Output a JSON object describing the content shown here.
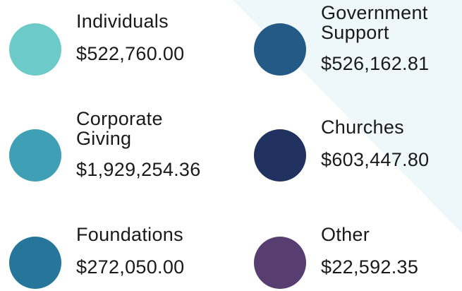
{
  "items": [
    {
      "label": [
        "Individuals"
      ],
      "amount": "$522,760.00",
      "color": "#6ccbc8"
    },
    {
      "label": [
        "Corporate",
        "Giving"
      ],
      "amount": "$1,929,254.36",
      "color": "#3f9fb4"
    },
    {
      "label": [
        "Foundations"
      ],
      "amount": "$272,050.00",
      "color": "#26769b"
    },
    {
      "label": [
        "Government",
        "Support"
      ],
      "amount": "$526,162.81",
      "color": "#235a86"
    },
    {
      "label": [
        "Churches"
      ],
      "amount": "$603,447.80",
      "color": "#213260"
    },
    {
      "label": [
        "Other"
      ],
      "amount": "$22,592.35",
      "color": "#583e70"
    }
  ]
}
